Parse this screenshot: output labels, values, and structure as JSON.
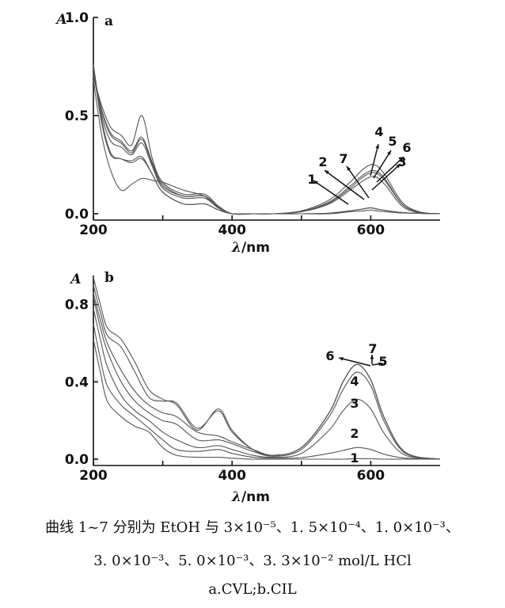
{
  "chart_data": [
    {
      "panel": "a",
      "type": "line",
      "xlabel_symbol": "λ",
      "xlabel_unit": "/nm",
      "ylabel": "A",
      "xlim": [
        200,
        700
      ],
      "ylim": [
        0.0,
        1.0
      ],
      "xticks": [
        200,
        400,
        600
      ],
      "yticks": [
        0.0,
        0.5,
        1.0
      ],
      "ytick_labels": [
        "0.0",
        "0.5",
        "1.0"
      ],
      "series": [
        {
          "name": "1",
          "x": [
            200,
            212,
            225,
            240,
            255,
            270,
            285,
            300,
            330,
            360,
            380,
            400,
            430,
            460,
            500,
            540,
            570,
            590,
            600,
            615,
            640,
            670,
            700
          ],
          "values": [
            0.76,
            0.48,
            0.31,
            0.28,
            0.27,
            0.29,
            0.2,
            0.11,
            0.05,
            0.05,
            0.02,
            0.0,
            0.0,
            0.0,
            0.0,
            0.0,
            0.01,
            0.015,
            0.018,
            0.012,
            0.005,
            0.002,
            0.0
          ]
        },
        {
          "name": "2",
          "x": [
            200,
            212,
            225,
            240,
            255,
            270,
            285,
            300,
            330,
            360,
            380,
            400,
            430,
            460,
            500,
            540,
            570,
            590,
            600,
            615,
            640,
            670,
            700
          ],
          "values": [
            0.74,
            0.46,
            0.3,
            0.28,
            0.26,
            0.28,
            0.2,
            0.11,
            0.05,
            0.05,
            0.02,
            0.0,
            0.0,
            0.0,
            0.0,
            0.003,
            0.015,
            0.025,
            0.03,
            0.02,
            0.008,
            0.002,
            0.0
          ]
        },
        {
          "name": "3",
          "x": [
            200,
            212,
            225,
            240,
            255,
            270,
            285,
            300,
            330,
            360,
            380,
            400,
            430,
            460,
            500,
            540,
            570,
            590,
            605,
            620,
            645,
            670,
            700
          ],
          "values": [
            0.72,
            0.5,
            0.37,
            0.34,
            0.3,
            0.36,
            0.24,
            0.13,
            0.08,
            0.08,
            0.03,
            0.0,
            0.0,
            0.0,
            0.01,
            0.05,
            0.12,
            0.17,
            0.19,
            0.15,
            0.04,
            0.005,
            0.0
          ]
        },
        {
          "name": "4",
          "x": [
            200,
            212,
            225,
            240,
            255,
            270,
            285,
            300,
            330,
            360,
            380,
            400,
            430,
            460,
            500,
            540,
            570,
            590,
            605,
            620,
            645,
            670,
            700
          ],
          "values": [
            0.7,
            0.55,
            0.44,
            0.4,
            0.35,
            0.5,
            0.28,
            0.16,
            0.1,
            0.1,
            0.04,
            0.0,
            0.0,
            0.0,
            0.015,
            0.07,
            0.16,
            0.23,
            0.25,
            0.2,
            0.06,
            0.01,
            0.0
          ]
        },
        {
          "name": "5",
          "x": [
            200,
            212,
            225,
            240,
            255,
            270,
            285,
            300,
            330,
            360,
            380,
            400,
            430,
            460,
            500,
            540,
            570,
            590,
            605,
            620,
            645,
            670,
            700
          ],
          "values": [
            0.71,
            0.53,
            0.41,
            0.37,
            0.32,
            0.39,
            0.26,
            0.15,
            0.09,
            0.09,
            0.035,
            0.0,
            0.0,
            0.0,
            0.012,
            0.06,
            0.14,
            0.2,
            0.22,
            0.18,
            0.05,
            0.008,
            0.0
          ]
        },
        {
          "name": "6",
          "x": [
            200,
            212,
            225,
            240,
            255,
            270,
            285,
            300,
            330,
            360,
            380,
            400,
            430,
            460,
            500,
            540,
            570,
            590,
            605,
            620,
            645,
            670,
            700
          ],
          "values": [
            0.7,
            0.52,
            0.4,
            0.36,
            0.31,
            0.38,
            0.25,
            0.14,
            0.09,
            0.09,
            0.035,
            0.0,
            0.0,
            0.0,
            0.011,
            0.055,
            0.13,
            0.19,
            0.21,
            0.17,
            0.05,
            0.007,
            0.0
          ]
        },
        {
          "name": "7",
          "x": [
            200,
            212,
            225,
            240,
            255,
            270,
            285,
            300,
            330,
            360,
            380,
            400,
            430,
            460,
            500,
            540,
            570,
            590,
            600,
            615,
            640,
            670,
            700
          ],
          "values": [
            0.68,
            0.4,
            0.22,
            0.12,
            0.15,
            0.18,
            0.17,
            0.16,
            0.12,
            0.09,
            0.03,
            0.0,
            0.0,
            0.0,
            0.0,
            0.003,
            0.015,
            0.025,
            0.03,
            0.02,
            0.008,
            0.002,
            0.0
          ]
        }
      ]
    },
    {
      "panel": "b",
      "type": "line",
      "xlabel_symbol": "λ",
      "xlabel_unit": "/nm",
      "ylabel": "A",
      "xlim": [
        200,
        700
      ],
      "ylim": [
        0.0,
        0.95
      ],
      "xticks": [
        200,
        400,
        600
      ],
      "yticks": [
        0.0,
        0.4,
        0.8
      ],
      "ytick_labels": [
        "0.0",
        "0.4",
        "0.8"
      ],
      "series": [
        {
          "name": "1",
          "x": [
            200,
            210,
            220,
            240,
            260,
            280,
            300,
            320,
            350,
            380,
            400,
            430,
            460,
            500,
            540,
            560,
            580,
            600,
            620,
            650,
            700
          ],
          "values": [
            0.62,
            0.45,
            0.3,
            0.22,
            0.17,
            0.14,
            0.06,
            0.02,
            0.01,
            0.01,
            0.005,
            0.0,
            0.0,
            0.0,
            0.0,
            0.0,
            0.003,
            0.002,
            0.0,
            0.0,
            0.0
          ]
        },
        {
          "name": "2",
          "x": [
            200,
            210,
            220,
            240,
            260,
            280,
            300,
            320,
            350,
            380,
            400,
            430,
            460,
            500,
            540,
            560,
            580,
            600,
            620,
            650,
            700
          ],
          "values": [
            0.7,
            0.52,
            0.38,
            0.28,
            0.22,
            0.16,
            0.1,
            0.05,
            0.04,
            0.05,
            0.03,
            0.01,
            0.005,
            0.008,
            0.03,
            0.045,
            0.06,
            0.05,
            0.025,
            0.005,
            0.0
          ]
        },
        {
          "name": "3",
          "x": [
            200,
            210,
            220,
            240,
            260,
            280,
            300,
            320,
            350,
            380,
            400,
            430,
            460,
            500,
            540,
            560,
            580,
            600,
            620,
            650,
            700
          ],
          "values": [
            0.78,
            0.62,
            0.48,
            0.33,
            0.25,
            0.2,
            0.14,
            0.1,
            0.06,
            0.07,
            0.05,
            0.02,
            0.01,
            0.03,
            0.15,
            0.25,
            0.31,
            0.26,
            0.13,
            0.02,
            0.0
          ]
        },
        {
          "name": "4",
          "x": [
            200,
            210,
            220,
            240,
            260,
            280,
            300,
            320,
            350,
            380,
            400,
            430,
            460,
            500,
            540,
            560,
            580,
            600,
            620,
            650,
            700
          ],
          "values": [
            0.84,
            0.68,
            0.56,
            0.4,
            0.3,
            0.24,
            0.2,
            0.18,
            0.1,
            0.1,
            0.08,
            0.04,
            0.015,
            0.05,
            0.22,
            0.36,
            0.45,
            0.38,
            0.19,
            0.03,
            0.0
          ]
        },
        {
          "name": "5",
          "x": [
            200,
            210,
            220,
            240,
            260,
            280,
            300,
            320,
            350,
            380,
            400,
            430,
            460,
            500,
            540,
            560,
            580,
            600,
            620,
            650,
            700
          ],
          "values": [
            0.86,
            0.72,
            0.6,
            0.46,
            0.35,
            0.28,
            0.24,
            0.22,
            0.14,
            0.12,
            0.09,
            0.05,
            0.02,
            0.06,
            0.24,
            0.4,
            0.49,
            0.41,
            0.21,
            0.035,
            0.0
          ]
        },
        {
          "name": "6",
          "x": [
            200,
            210,
            220,
            240,
            260,
            280,
            300,
            320,
            350,
            380,
            400,
            430,
            460,
            500,
            540,
            560,
            580,
            600,
            620,
            650,
            700
          ],
          "values": [
            0.9,
            0.76,
            0.64,
            0.58,
            0.45,
            0.32,
            0.3,
            0.29,
            0.16,
            0.25,
            0.14,
            0.05,
            0.02,
            0.06,
            0.24,
            0.4,
            0.49,
            0.41,
            0.21,
            0.035,
            0.0
          ]
        },
        {
          "name": "7",
          "x": [
            200,
            210,
            220,
            240,
            260,
            280,
            300,
            320,
            350,
            380,
            400,
            430,
            460,
            500,
            540,
            560,
            580,
            600,
            620,
            650,
            700
          ],
          "values": [
            0.94,
            0.8,
            0.68,
            0.62,
            0.5,
            0.36,
            0.31,
            0.28,
            0.15,
            0.26,
            0.15,
            0.05,
            0.02,
            0.06,
            0.24,
            0.4,
            0.49,
            0.41,
            0.21,
            0.035,
            0.0
          ]
        }
      ]
    }
  ],
  "annotations": {
    "panel_a": {
      "labels": [
        "1",
        "2",
        "7",
        "3",
        "4",
        "5",
        "6"
      ]
    },
    "panel_b": {
      "labels": [
        "6",
        "7",
        "5",
        "4",
        "3",
        "2",
        "1"
      ]
    }
  },
  "caption": {
    "line1": "曲线 1~7 分别为 EtOH 与 3×10⁻⁵、1. 5×10⁻⁴、1. 0×10⁻³、",
    "line2": "3. 0×10⁻³、5. 0×10⁻³、3. 3×10⁻² mol/L HCl",
    "line3": "a.CVL;b.CIL"
  },
  "colors": {
    "curve": "#555555",
    "axis": "#111111",
    "background": "#ffffff"
  }
}
